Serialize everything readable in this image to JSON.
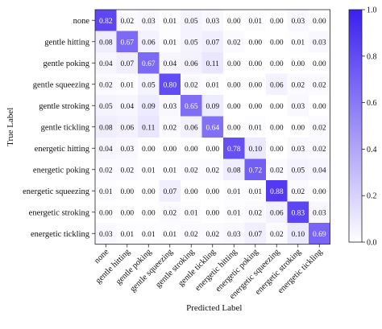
{
  "chart_data": {
    "type": "heatmap",
    "xlabel": "Predicted Label",
    "ylabel": "True Label",
    "labels": [
      "none",
      "gentle hitting",
      "gentle poking",
      "gentle squeezing",
      "gentle stroking",
      "gentle tickling",
      "energetic hitting",
      "energetic poking",
      "energetic squeezing",
      "energetic stroking",
      "energetic tickling"
    ],
    "matrix": [
      [
        "0.82",
        "0.02",
        "0.03",
        "0.01",
        "0.05",
        "0.03",
        "0.00",
        "0.01",
        "0.00",
        "0.03",
        "0.00"
      ],
      [
        "0.08",
        "0.67",
        "0.06",
        "0.01",
        "0.05",
        "0.07",
        "0.02",
        "0.00",
        "0.00",
        "0.01",
        "0.03"
      ],
      [
        "0.04",
        "0.07",
        "0.67",
        "0.04",
        "0.06",
        "0.11",
        "0.00",
        "0.00",
        "0.00",
        "0.00",
        "0.00"
      ],
      [
        "0.02",
        "0.01",
        "0.05",
        "0.80",
        "0.02",
        "0.01",
        "0.00",
        "0.00",
        "0.06",
        "0.02",
        "0.02"
      ],
      [
        "0.05",
        "0.04",
        "0.09",
        "0.03",
        "0.65",
        "0.09",
        "0.00",
        "0.00",
        "0.00",
        "0.03",
        "0.00"
      ],
      [
        "0.08",
        "0.06",
        "0.11",
        "0.02",
        "0.06",
        "0.64",
        "0.00",
        "0.01",
        "0.00",
        "0.00",
        "0.02"
      ],
      [
        "0.04",
        "0.03",
        "0.00",
        "0.00",
        "0.00",
        "0.00",
        "0.78",
        "0.10",
        "0.00",
        "0.03",
        "0.02"
      ],
      [
        "0.02",
        "0.02",
        "0.01",
        "0.01",
        "0.02",
        "0.02",
        "0.08",
        "0.72",
        "0.02",
        "0.05",
        "0.04"
      ],
      [
        "0.01",
        "0.00",
        "0.00",
        "0.07",
        "0.00",
        "0.00",
        "0.01",
        "0.01",
        "0.88",
        "0.02",
        "0.00"
      ],
      [
        "0.00",
        "0.00",
        "0.00",
        "0.02",
        "0.01",
        "0.00",
        "0.01",
        "0.02",
        "0.06",
        "0.83",
        "0.03"
      ],
      [
        "0.03",
        "0.01",
        "0.01",
        "0.01",
        "0.02",
        "0.02",
        "0.03",
        "0.07",
        "0.02",
        "0.10",
        "0.69"
      ]
    ],
    "colorbar": {
      "range": [
        0.0,
        1.0
      ],
      "ticks": [
        "0.0",
        "0.2",
        "0.4",
        "0.6",
        "0.8",
        "1.0"
      ],
      "low_color": "#ffffff",
      "high_color": "#3b1ff0"
    }
  }
}
